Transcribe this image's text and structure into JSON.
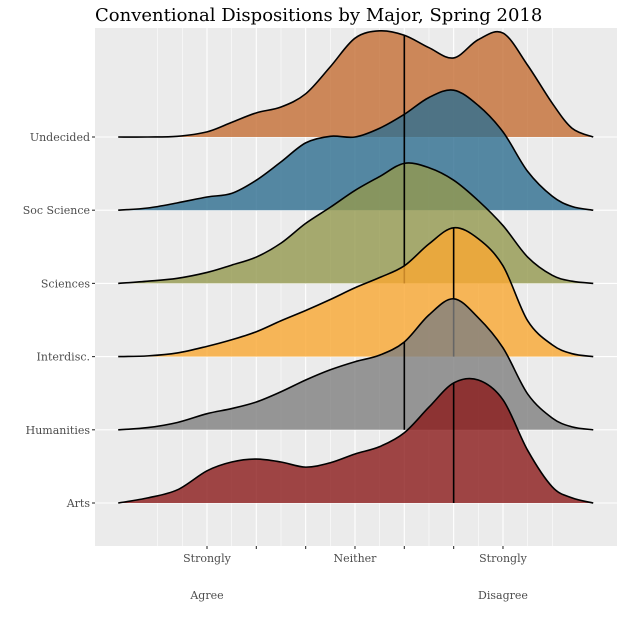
{
  "chart_data": {
    "type": "ridgeline-density",
    "title": "Conventional Dispositions by Major, Spring 2018",
    "xlabel": "",
    "ylabel": "",
    "xlim": [
      -1.3,
      9.6
    ],
    "x_ticks": [
      1,
      2,
      3,
      4,
      5,
      6,
      7
    ],
    "x_tick_labels": [
      {
        "value": 1,
        "lines": [
          "Strongly",
          "Agree"
        ]
      },
      {
        "value": 4,
        "lines": [
          "Neither",
          ""
        ]
      },
      {
        "value": 7,
        "lines": [
          "Strongly",
          "Disagree"
        ]
      }
    ],
    "grid": true,
    "legend": "none",
    "density_x": [
      -0.8,
      -0.2,
      0.4,
      1.0,
      1.5,
      2.0,
      2.5,
      3.0,
      3.5,
      4.0,
      4.5,
      5.0,
      5.5,
      6.0,
      6.5,
      7.0,
      7.5,
      8.0,
      8.4,
      8.83
    ],
    "series": [
      {
        "name": "Arts",
        "color": "#8b1a1a",
        "median": 6,
        "density": [
          0,
          0.07,
          0.18,
          0.44,
          0.56,
          0.6,
          0.56,
          0.49,
          0.55,
          0.67,
          0.77,
          0.96,
          1.31,
          1.64,
          1.68,
          1.41,
          0.72,
          0.22,
          0.07,
          0
        ]
      },
      {
        "name": "Humanities",
        "color": "#808080",
        "median": 5,
        "density": [
          0,
          0.03,
          0.1,
          0.22,
          0.29,
          0.38,
          0.52,
          0.68,
          0.82,
          0.93,
          1.02,
          1.2,
          1.57,
          1.79,
          1.53,
          1.12,
          0.49,
          0.16,
          0.04,
          0
        ]
      },
      {
        "name": "Interdisc.",
        "color": "#f9a832",
        "median": 6,
        "density": [
          0,
          0.01,
          0.05,
          0.14,
          0.23,
          0.34,
          0.49,
          0.63,
          0.78,
          0.94,
          1.08,
          1.24,
          1.54,
          1.76,
          1.61,
          1.24,
          0.49,
          0.16,
          0.04,
          0
        ]
      },
      {
        "name": "Sciences",
        "color": "#94994f",
        "median": 5,
        "density": [
          0,
          0.03,
          0.07,
          0.15,
          0.25,
          0.36,
          0.55,
          0.82,
          1.04,
          1.27,
          1.46,
          1.64,
          1.58,
          1.41,
          1.13,
          0.79,
          0.36,
          0.11,
          0.03,
          0
        ]
      },
      {
        "name": "Soc Science",
        "color": "#2e6e90",
        "median": 5,
        "density": [
          0,
          0.03,
          0.1,
          0.18,
          0.23,
          0.41,
          0.66,
          0.92,
          1.01,
          1.0,
          1.12,
          1.31,
          1.54,
          1.64,
          1.43,
          1.07,
          0.53,
          0.19,
          0.05,
          0
        ]
      },
      {
        "name": "Undecided",
        "color": "#c46e35",
        "median": 5,
        "density": [
          0,
          0,
          0.01,
          0.07,
          0.2,
          0.33,
          0.41,
          0.59,
          0.96,
          1.35,
          1.45,
          1.39,
          1.22,
          1.08,
          1.33,
          1.42,
          0.98,
          0.46,
          0.12,
          0
        ]
      }
    ],
    "categories": [
      "Arts",
      "Humanities",
      "Interdisc.",
      "Sciences",
      "Soc Science",
      "Undecided"
    ]
  }
}
